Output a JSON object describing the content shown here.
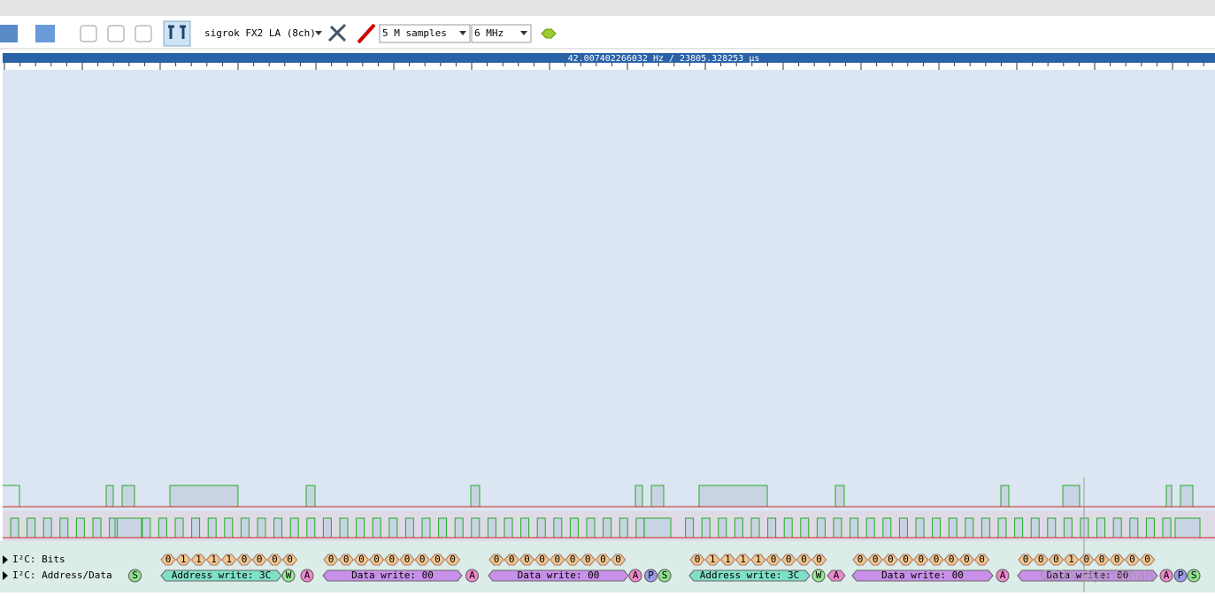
{
  "toolbar": {
    "device": "sigrok FX2 LA (8ch)",
    "samples": "5 M samples",
    "rate": "6 MHz"
  },
  "ruler": {
    "label": "42.007402266032 Hz / 23805.328253 μs"
  },
  "tracks": [
    {
      "label": "I²C: Bits",
      "groups": [
        [
          "0",
          "1",
          "1",
          "1",
          "1",
          "0",
          "0",
          "0",
          "0"
        ],
        [
          "0",
          "0",
          "0",
          "0",
          "0",
          "0",
          "0",
          "0",
          "0"
        ],
        [
          "0",
          "0",
          "0",
          "0",
          "0",
          "0",
          "0",
          "0",
          "0"
        ],
        [
          "0",
          "1",
          "1",
          "1",
          "1",
          "0",
          "0",
          "0",
          "0"
        ],
        [
          "0",
          "0",
          "0",
          "0",
          "0",
          "0",
          "0",
          "0",
          "0"
        ],
        [
          "0",
          "0",
          "0",
          "1",
          "0",
          "0",
          "0",
          "0",
          "0"
        ]
      ]
    },
    {
      "label": "I²C: Address/Data",
      "annotations": [
        "S",
        "Address write: 3C",
        "W",
        "A",
        "Data write: 00",
        "A",
        "Data write: 00",
        "A",
        "P",
        "S",
        "Address write: 3C",
        "W",
        "A",
        "Data write: 00",
        "A",
        "Data write: 00",
        "A",
        "P",
        "S"
      ]
    }
  ],
  "watermark": "CSDN @Jonathan"
}
